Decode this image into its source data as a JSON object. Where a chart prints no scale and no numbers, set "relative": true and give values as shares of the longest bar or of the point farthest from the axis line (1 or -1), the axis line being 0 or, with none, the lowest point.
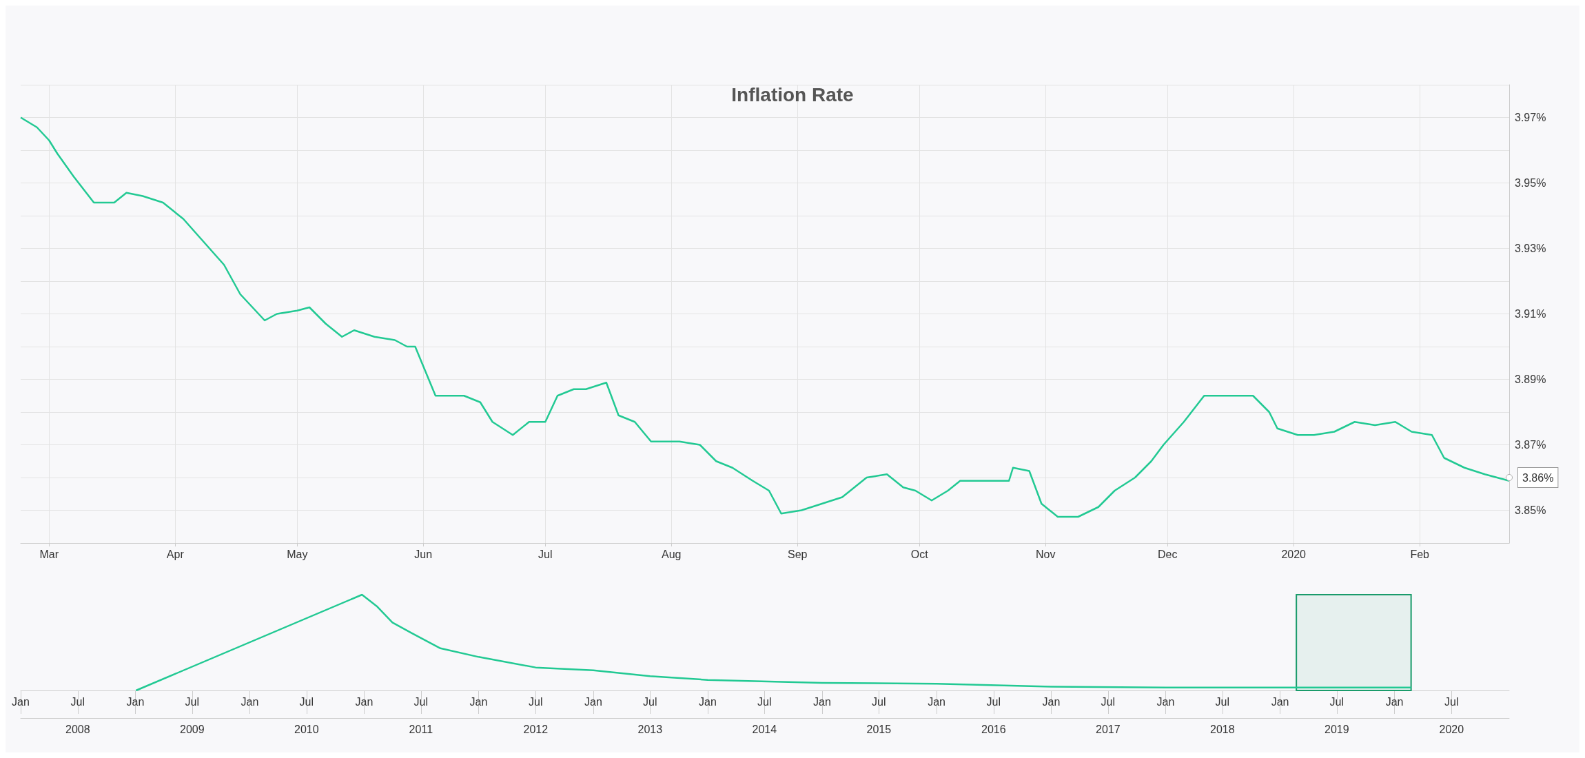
{
  "chart_data": [
    {
      "type": "line",
      "title": "Inflation Rate",
      "color": "#22c993",
      "marker": "none",
      "grid": true,
      "x": [
        "2019-02-22",
        "2019-02-26",
        "2019-03-01",
        "2019-03-03",
        "2019-03-07",
        "2019-03-12",
        "2019-03-17",
        "2019-03-20",
        "2019-03-24",
        "2019-03-29",
        "2019-04-03",
        "2019-04-08",
        "2019-04-13",
        "2019-04-17",
        "2019-04-23",
        "2019-04-26",
        "2019-05-01",
        "2019-05-04",
        "2019-05-08",
        "2019-05-12",
        "2019-05-15",
        "2019-05-20",
        "2019-05-25",
        "2019-05-28",
        "2019-05-30",
        "2019-06-01",
        "2019-06-04",
        "2019-06-11",
        "2019-06-15",
        "2019-06-18",
        "2019-06-23",
        "2019-06-27",
        "2019-07-01",
        "2019-07-04",
        "2019-07-08",
        "2019-07-11",
        "2019-07-16",
        "2019-07-19",
        "2019-07-23",
        "2019-07-27",
        "2019-07-30",
        "2019-08-03",
        "2019-08-08",
        "2019-08-12",
        "2019-08-16",
        "2019-08-21",
        "2019-08-25",
        "2019-08-28",
        "2019-09-02",
        "2019-09-07",
        "2019-09-12",
        "2019-09-18",
        "2019-09-23",
        "2019-09-27",
        "2019-09-30",
        "2019-10-04",
        "2019-10-08",
        "2019-10-11",
        "2019-10-15",
        "2019-10-20",
        "2019-10-23",
        "2019-10-24",
        "2019-10-28",
        "2019-10-31",
        "2019-11-04",
        "2019-11-09",
        "2019-11-14",
        "2019-11-18",
        "2019-11-23",
        "2019-11-27",
        "2019-11-30",
        "2019-12-05",
        "2019-12-10",
        "2019-12-15",
        "2019-12-19",
        "2019-12-22",
        "2019-12-26",
        "2019-12-28",
        "2020-01-02",
        "2020-01-06",
        "2020-01-11",
        "2020-01-16",
        "2020-01-21",
        "2020-01-26",
        "2020-01-30",
        "2020-02-04",
        "2020-02-07",
        "2020-02-12",
        "2020-02-17",
        "2020-02-23"
      ],
      "values": [
        3.97,
        3.967,
        3.963,
        3.959,
        3.952,
        3.944,
        3.944,
        3.947,
        3.946,
        3.944,
        3.939,
        3.932,
        3.925,
        3.916,
        3.908,
        3.91,
        3.911,
        3.912,
        3.907,
        3.903,
        3.905,
        3.903,
        3.902,
        3.9,
        3.9,
        3.894,
        3.885,
        3.885,
        3.883,
        3.877,
        3.873,
        3.877,
        3.877,
        3.885,
        3.887,
        3.887,
        3.889,
        3.879,
        3.877,
        3.871,
        3.871,
        3.871,
        3.87,
        3.865,
        3.863,
        3.859,
        3.856,
        3.849,
        3.85,
        3.852,
        3.854,
        3.86,
        3.861,
        3.857,
        3.856,
        3.853,
        3.856,
        3.859,
        3.859,
        3.859,
        3.859,
        3.863,
        3.862,
        3.852,
        3.848,
        3.848,
        3.851,
        3.856,
        3.86,
        3.865,
        3.87,
        3.877,
        3.885,
        3.885,
        3.885,
        3.885,
        3.88,
        3.875,
        3.873,
        3.873,
        3.874,
        3.877,
        3.876,
        3.877,
        3.874,
        3.873,
        3.866,
        3.863,
        3.861,
        3.859
      ],
      "xlim": [
        "2019-02-22",
        "2020-02-23"
      ],
      "xticks": [
        {
          "value": "2019-03-01",
          "label": "Mar"
        },
        {
          "value": "2019-04-01",
          "label": "Apr"
        },
        {
          "value": "2019-05-01",
          "label": "May"
        },
        {
          "value": "2019-06-01",
          "label": "Jun"
        },
        {
          "value": "2019-07-01",
          "label": "Jul"
        },
        {
          "value": "2019-08-01",
          "label": "Aug"
        },
        {
          "value": "2019-09-01",
          "label": "Sep"
        },
        {
          "value": "2019-10-01",
          "label": "Oct"
        },
        {
          "value": "2019-11-01",
          "label": "Nov"
        },
        {
          "value": "2019-12-01",
          "label": "Dec"
        },
        {
          "value": "2020-01-01",
          "label": "2020"
        },
        {
          "value": "2020-02-01",
          "label": "Feb"
        }
      ],
      "ylim": [
        3.84,
        3.98
      ],
      "yticks": [
        {
          "value": 3.84,
          "label": null
        },
        {
          "value": 3.85,
          "label": "3.85%"
        },
        {
          "value": 3.86,
          "label": null
        },
        {
          "value": 3.87,
          "label": "3.87%"
        },
        {
          "value": 3.88,
          "label": null
        },
        {
          "value": 3.89,
          "label": "3.89%"
        },
        {
          "value": 3.9,
          "label": null
        },
        {
          "value": 3.91,
          "label": "3.91%"
        },
        {
          "value": 3.92,
          "label": null
        },
        {
          "value": 3.93,
          "label": "3.93%"
        },
        {
          "value": 3.94,
          "label": null
        },
        {
          "value": 3.95,
          "label": "3.95%"
        },
        {
          "value": 3.96,
          "label": null
        },
        {
          "value": 3.97,
          "label": "3.97%"
        },
        {
          "value": 3.98,
          "label": null
        }
      ],
      "annotations": [
        {
          "text": "3.86%",
          "x": "2020-02-23",
          "y": 3.86
        }
      ]
    },
    {
      "type": "line",
      "relative": true,
      "color": "#22c993",
      "marker": "none",
      "grid": false,
      "tick_labels": "x",
      "x": [
        "2009-01-03",
        "2010-12-25",
        "2011-02-10",
        "2011-04-01",
        "2011-06-01",
        "2011-09-01",
        "2012-01-01",
        "2012-07-01",
        "2013-01-01",
        "2013-07-01",
        "2014-01-01",
        "2015-01-01",
        "2016-01-01",
        "2017-01-01",
        "2018-01-01",
        "2019-01-01",
        "2020-02-23"
      ],
      "values": [
        0,
        1,
        0.88,
        0.71,
        0.6,
        0.44,
        0.35,
        0.24,
        0.21,
        0.15,
        0.11,
        0.08,
        0.07,
        0.04,
        0.03,
        0.03,
        0.03
      ],
      "xlim": [
        "2008-01-01",
        "2021-01-01"
      ],
      "xticks": [
        {
          "value": "2008-01-01",
          "label": "Jan"
        },
        {
          "value": "2008-07-01",
          "label": "Jul"
        },
        {
          "value": "2009-01-01",
          "label": "Jan"
        },
        {
          "value": "2009-07-01",
          "label": "Jul"
        },
        {
          "value": "2010-01-01",
          "label": "Jan"
        },
        {
          "value": "2010-07-01",
          "label": "Jul"
        },
        {
          "value": "2011-01-01",
          "label": "Jan"
        },
        {
          "value": "2011-07-01",
          "label": "Jul"
        },
        {
          "value": "2012-01-01",
          "label": "Jan"
        },
        {
          "value": "2012-07-01",
          "label": "Jul"
        },
        {
          "value": "2013-01-01",
          "label": "Jan"
        },
        {
          "value": "2013-07-01",
          "label": "Jul"
        },
        {
          "value": "2014-01-01",
          "label": "Jan"
        },
        {
          "value": "2014-07-01",
          "label": "Jul"
        },
        {
          "value": "2015-01-01",
          "label": "Jan"
        },
        {
          "value": "2015-07-01",
          "label": "Jul"
        },
        {
          "value": "2016-01-01",
          "label": "Jan"
        },
        {
          "value": "2016-07-01",
          "label": "Jul"
        },
        {
          "value": "2017-01-01",
          "label": "Jan"
        },
        {
          "value": "2017-07-01",
          "label": "Jul"
        },
        {
          "value": "2018-01-01",
          "label": "Jan"
        },
        {
          "value": "2018-07-01",
          "label": "Jul"
        },
        {
          "value": "2019-01-01",
          "label": "Jan"
        },
        {
          "value": "2019-07-01",
          "label": "Jul"
        },
        {
          "value": "2020-01-01",
          "label": "Jan"
        },
        {
          "value": "2020-07-01",
          "label": "Jul"
        }
      ],
      "x2lim": [
        "2008-01-01",
        "2021-01-01"
      ],
      "x2ticks": [
        {
          "value": "2008-07-01",
          "label": "2008"
        },
        {
          "value": "2009-07-01",
          "label": "2009"
        },
        {
          "value": "2010-07-01",
          "label": "2010"
        },
        {
          "value": "2011-07-01",
          "label": "2011"
        },
        {
          "value": "2012-07-01",
          "label": "2012"
        },
        {
          "value": "2013-07-01",
          "label": "2013"
        },
        {
          "value": "2014-07-01",
          "label": "2014"
        },
        {
          "value": "2015-07-01",
          "label": "2015"
        },
        {
          "value": "2016-07-01",
          "label": "2016"
        },
        {
          "value": "2017-07-01",
          "label": "2017"
        },
        {
          "value": "2018-07-01",
          "label": "2018"
        },
        {
          "value": "2019-07-01",
          "label": "2019"
        },
        {
          "value": "2020-07-01",
          "label": "2020"
        }
      ],
      "bands": [
        {
          "axis": "x",
          "from": "2019-02-22",
          "to": "2020-02-23",
          "color": "#1a9b6b"
        }
      ]
    }
  ]
}
